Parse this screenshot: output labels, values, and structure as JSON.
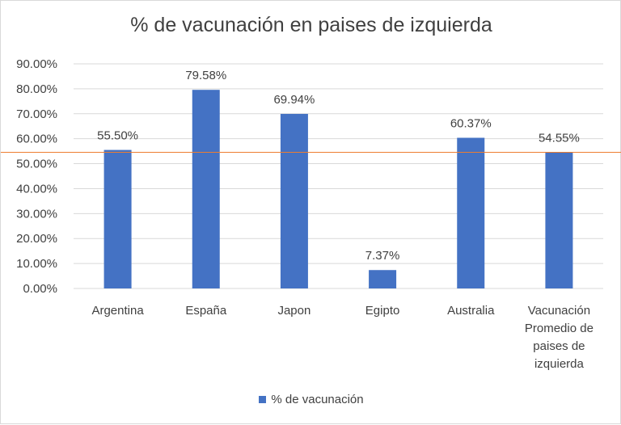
{
  "chart_data": {
    "type": "bar",
    "title": "% de vacunación en paises de izquierda",
    "categories": [
      [
        "Argentina"
      ],
      [
        "España"
      ],
      [
        "Japon"
      ],
      [
        "Egipto"
      ],
      [
        "Australia"
      ],
      [
        "Vacunación",
        "Promedio de",
        "paises de",
        "izquierda"
      ]
    ],
    "series": [
      {
        "name": "% de vacunación",
        "values": [
          55.5,
          79.58,
          69.94,
          7.37,
          60.37,
          54.55
        ],
        "labels": [
          "55.50%",
          "79.58%",
          "69.94%",
          "7.37%",
          "60.37%",
          "54.55%"
        ],
        "color": "#4472c4"
      }
    ],
    "ylim": [
      0,
      90
    ],
    "yticks": [
      "0.00%",
      "10.00%",
      "20.00%",
      "30.00%",
      "40.00%",
      "50.00%",
      "60.00%",
      "70.00%",
      "80.00%",
      "90.00%"
    ],
    "reference_line": {
      "value": 54.55,
      "color": "#ed7d31"
    },
    "grid": true,
    "legend_position": "bottom",
    "gridline_color": "#d9d9d9"
  }
}
